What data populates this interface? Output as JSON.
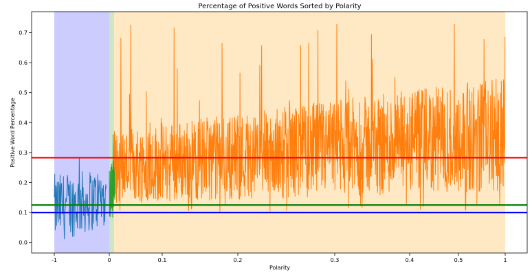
{
  "chart_data": {
    "type": "line",
    "title": "Percentage of Positive Words Sorted by Polarity",
    "xlabel": "Polarity",
    "ylabel": "Positive Word Percentage",
    "ylim": [
      -0.035,
      0.77
    ],
    "y_ticks": [
      0.0,
      0.1,
      0.2,
      0.3,
      0.4,
      0.5,
      0.6,
      0.7
    ],
    "y_tick_labels": [
      "0.0",
      "0.1",
      "0.2",
      "0.3",
      "0.4",
      "0.5",
      "0.6",
      "0.7"
    ],
    "x_tick_labels": [
      "-1",
      "0",
      "0.1",
      "0.2",
      "0.3",
      "0.4",
      "0.5",
      "1"
    ],
    "grid": false,
    "legend": "none",
    "shaded_regions": [
      {
        "label": "negative",
        "from_tick": "-1",
        "to_tick": "0",
        "color": "#ccccff"
      },
      {
        "label": "neutral",
        "from_tick": "0",
        "to_tick": "0 (narrow)",
        "color": "#cde6c8"
      },
      {
        "label": "positive",
        "from_tick": "0 (narrow)",
        "to_tick": "1",
        "color": "#ffe8c4"
      }
    ],
    "series": [
      {
        "color": "#1f77b4",
        "segment": "negative polarity",
        "y_min": 0.0,
        "y_max": 0.31,
        "typical_low": 0.0,
        "typical_high": 0.25
      },
      {
        "color": "#2ca02c",
        "segment": "near-zero polarity",
        "y_min": 0.07,
        "y_max": 0.37,
        "typical_low": 0.08,
        "typical_high": 0.28
      },
      {
        "color": "#ff7f0e",
        "segment": "positive polarity",
        "y_min": 0.1,
        "y_max": 0.74,
        "trend_start_low": 0.13,
        "trend_start_high": 0.38,
        "trend_end_low": 0.17,
        "trend_end_high": 0.55
      }
    ],
    "reference_lines": [
      {
        "value": 0.283,
        "color": "#ff0000"
      },
      {
        "value": 0.125,
        "color": "#008000"
      },
      {
        "value": 0.1,
        "color": "#0000ff"
      }
    ]
  }
}
